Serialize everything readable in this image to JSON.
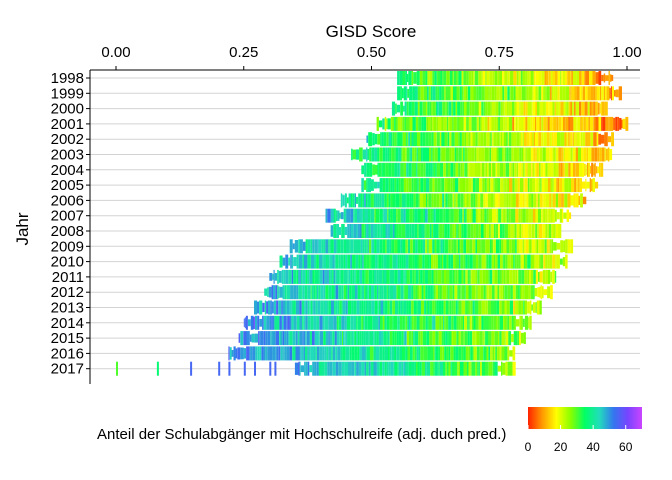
{
  "chart_data": {
    "type": "heatmap",
    "title": "",
    "xlabel": "GISD Score",
    "ylabel": "Jahr",
    "xaxis_position": "top",
    "xlim": [
      0,
      1
    ],
    "xticks": [
      "0.00",
      "0.25",
      "0.50",
      "0.75",
      "1.00"
    ],
    "categories": [
      "1998",
      "1999",
      "2000",
      "2001",
      "2002",
      "2003",
      "2004",
      "2005",
      "2006",
      "2007",
      "2008",
      "2009",
      "2010",
      "2011",
      "2012",
      "2013",
      "2014",
      "2015",
      "2016",
      "2017"
    ],
    "grid": "horizontal",
    "color_variable": "Anteil der Schulabgänger mit Hochschulreife (adj. duch pred.)",
    "colorbar": {
      "position": "bottom-right",
      "range": [
        0,
        70
      ],
      "ticks": [
        "0",
        "20",
        "40",
        "60"
      ],
      "colors": [
        "#ff2200",
        "#ff9900",
        "#ffff00",
        "#88ff00",
        "#00ff66",
        "#22ddbb",
        "#3377ee",
        "#7744ff",
        "#cc44ff"
      ]
    },
    "series": [
      {
        "year": "1998",
        "x_min": 0.55,
        "x_max": 0.97,
        "mean_share": 22
      },
      {
        "year": "1999",
        "x_min": 0.55,
        "x_max": 0.99,
        "mean_share": 24
      },
      {
        "year": "2000",
        "x_min": 0.54,
        "x_max": 0.96,
        "mean_share": 24
      },
      {
        "year": "2001",
        "x_min": 0.51,
        "x_max": 1.0,
        "mean_share": 20
      },
      {
        "year": "2002",
        "x_min": 0.49,
        "x_max": 0.97,
        "mean_share": 24
      },
      {
        "year": "2003",
        "x_min": 0.46,
        "x_max": 0.97,
        "mean_share": 25
      },
      {
        "year": "2004",
        "x_min": 0.48,
        "x_max": 0.95,
        "mean_share": 25
      },
      {
        "year": "2005",
        "x_min": 0.48,
        "x_max": 0.94,
        "mean_share": 26
      },
      {
        "year": "2006",
        "x_min": 0.44,
        "x_max": 0.92,
        "mean_share": 27
      },
      {
        "year": "2007",
        "x_min": 0.41,
        "x_max": 0.89,
        "mean_share": 32
      },
      {
        "year": "2008",
        "x_min": 0.42,
        "x_max": 0.87,
        "mean_share": 32
      },
      {
        "year": "2009",
        "x_min": 0.34,
        "x_max": 0.89,
        "mean_share": 33
      },
      {
        "year": "2010",
        "x_min": 0.32,
        "x_max": 0.88,
        "mean_share": 34
      },
      {
        "year": "2011",
        "x_min": 0.3,
        "x_max": 0.86,
        "mean_share": 34
      },
      {
        "year": "2012",
        "x_min": 0.29,
        "x_max": 0.85,
        "mean_share": 35
      },
      {
        "year": "2013",
        "x_min": 0.27,
        "x_max": 0.83,
        "mean_share": 36
      },
      {
        "year": "2014",
        "x_min": 0.25,
        "x_max": 0.81,
        "mean_share": 37
      },
      {
        "year": "2015",
        "x_min": 0.24,
        "x_max": 0.8,
        "mean_share": 38
      },
      {
        "year": "2016",
        "x_min": 0.22,
        "x_max": 0.78,
        "mean_share": 39
      },
      {
        "year": "2017",
        "x_min": 0.0,
        "x_max": 0.78,
        "mean_share": 38
      }
    ]
  }
}
